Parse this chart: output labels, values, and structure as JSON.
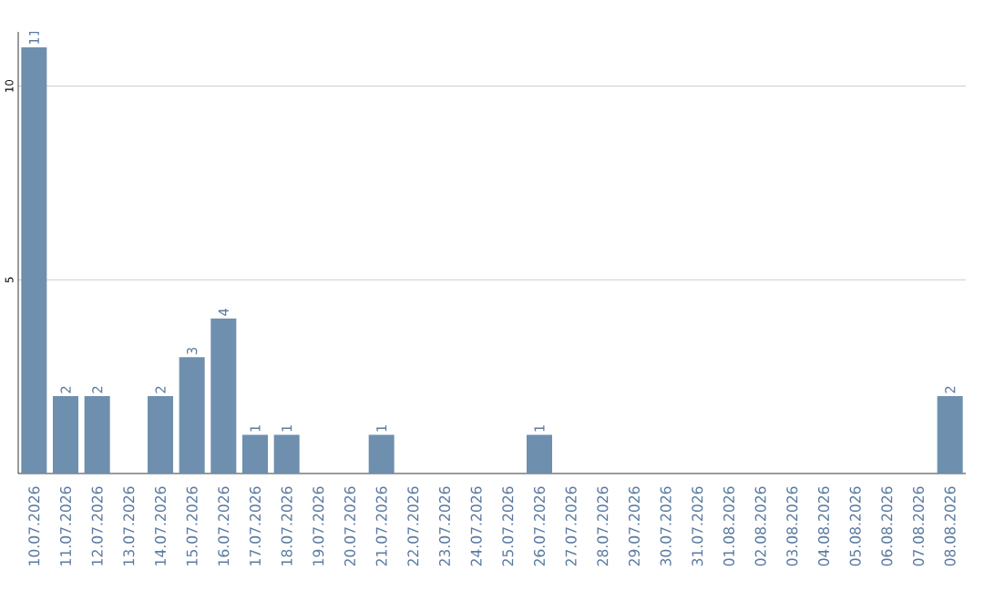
{
  "chart_data": {
    "type": "bar",
    "categories": [
      "10.07.2026",
      "11.07.2026",
      "12.07.2026",
      "13.07.2026",
      "14.07.2026",
      "15.07.2026",
      "16.07.2026",
      "17.07.2026",
      "18.07.2026",
      "19.07.2026",
      "20.07.2026",
      "21.07.2026",
      "22.07.2026",
      "23.07.2026",
      "24.07.2026",
      "25.07.2026",
      "26.07.2026",
      "27.07.2026",
      "28.07.2026",
      "29.07.2026",
      "30.07.2026",
      "31.07.2026",
      "01.08.2026",
      "02.08.2026",
      "03.08.2026",
      "04.08.2026",
      "05.08.2026",
      "06.08.2026",
      "07.08.2026",
      "08.08.2026"
    ],
    "values": [
      11,
      2,
      2,
      0,
      2,
      3,
      4,
      1,
      1,
      0,
      0,
      1,
      0,
      0,
      0,
      0,
      1,
      0,
      0,
      0,
      0,
      0,
      0,
      0,
      0,
      0,
      0,
      0,
      0,
      2
    ],
    "value_labels": [
      "11",
      "2",
      "2",
      null,
      "2",
      "3",
      "4",
      "1",
      "1",
      null,
      null,
      "1",
      null,
      null,
      null,
      null,
      "1",
      null,
      null,
      null,
      null,
      null,
      null,
      null,
      null,
      null,
      null,
      null,
      null,
      "2"
    ],
    "color": "#6e8fae",
    "ylim": [
      0,
      11.4
    ],
    "yticks": [
      5,
      10
    ],
    "grid": "y"
  }
}
